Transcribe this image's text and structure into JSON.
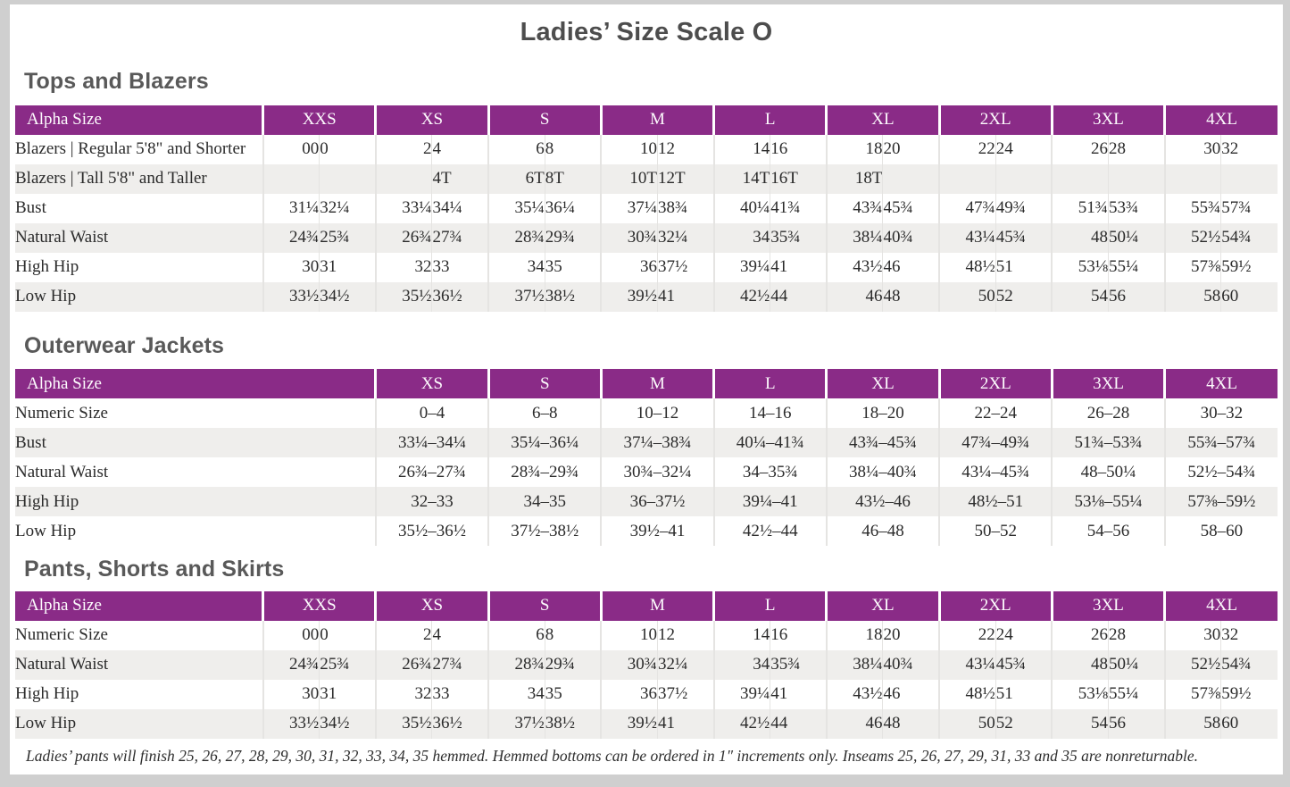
{
  "page": {
    "title": "Ladies’ Size Scale O",
    "footnote": "Ladies’ pants will finish 25, 26, 27, 28, 29, 30, 31, 32, 33, 34, 35 hemmed. Hemmed bottoms can be ordered in 1″ increments only. Inseams 25, 26, 27, 29, 31, 33 and 35 are nonreturnable."
  },
  "colors": {
    "header_purple": "#8a2b87",
    "row_stripe": "#efeeec",
    "heading_gray": "#595959",
    "page_edge_gray": "#cfcfcf"
  },
  "tables": [
    {
      "section_title": "Tops and Blazers",
      "type": "split",
      "header_label": "Alpha Size",
      "sizes": [
        "XXS",
        "XS",
        "S",
        "M",
        "L",
        "XL",
        "2XL",
        "3XL",
        "4XL"
      ],
      "rows": [
        {
          "label": "Blazers  |  Regular 5'8\" and Shorter",
          "cells": [
            [
              "00",
              "0"
            ],
            [
              "2",
              "4"
            ],
            [
              "6",
              "8"
            ],
            [
              "10",
              "12"
            ],
            [
              "14",
              "16"
            ],
            [
              "18",
              "20"
            ],
            [
              "22",
              "24"
            ],
            [
              "26",
              "28"
            ],
            [
              "30",
              "32"
            ]
          ]
        },
        {
          "label": "Blazers  |  Tall 5'8\" and Taller",
          "cells": [
            [
              "",
              ""
            ],
            [
              "",
              "4T"
            ],
            [
              "6T",
              "8T"
            ],
            [
              "10T",
              "12T"
            ],
            [
              "14T",
              "16T"
            ],
            [
              "18T",
              ""
            ],
            [
              "",
              ""
            ],
            [
              "",
              ""
            ],
            [
              "",
              ""
            ]
          ]
        },
        {
          "label": "Bust",
          "cells": [
            [
              "31¼",
              "32¼"
            ],
            [
              "33¼",
              "34¼"
            ],
            [
              "35¼",
              "36¼"
            ],
            [
              "37¼",
              "38¾"
            ],
            [
              "40¼",
              "41¾"
            ],
            [
              "43¾",
              "45¾"
            ],
            [
              "47¾",
              "49¾"
            ],
            [
              "51¾",
              "53¾"
            ],
            [
              "55¾",
              "57¾"
            ]
          ]
        },
        {
          "label": "Natural Waist",
          "cells": [
            [
              "24¾",
              "25¾"
            ],
            [
              "26¾",
              "27¾"
            ],
            [
              "28¾",
              "29¾"
            ],
            [
              "30¾",
              "32¼"
            ],
            [
              "34",
              "35¾"
            ],
            [
              "38¼",
              "40¾"
            ],
            [
              "43¼",
              "45¾"
            ],
            [
              "48",
              "50¼"
            ],
            [
              "52½",
              "54¾"
            ]
          ]
        },
        {
          "label": "High Hip",
          "cells": [
            [
              "30",
              "31"
            ],
            [
              "32",
              "33"
            ],
            [
              "34",
              "35"
            ],
            [
              "36",
              "37½"
            ],
            [
              "39¼",
              "41"
            ],
            [
              "43½",
              "46"
            ],
            [
              "48½",
              "51"
            ],
            [
              "53⅛",
              "55¼"
            ],
            [
              "57⅜",
              "59½"
            ]
          ]
        },
        {
          "label": "Low Hip",
          "cells": [
            [
              "33½",
              "34½"
            ],
            [
              "35½",
              "36½"
            ],
            [
              "37½",
              "38½"
            ],
            [
              "39½",
              "41"
            ],
            [
              "42½",
              "44"
            ],
            [
              "46",
              "48"
            ],
            [
              "50",
              "52"
            ],
            [
              "54",
              "56"
            ],
            [
              "58",
              "60"
            ]
          ]
        }
      ]
    },
    {
      "section_title": "Outerwear Jackets",
      "type": "range",
      "header_label": "Alpha Size",
      "sizes": [
        "XS",
        "S",
        "M",
        "L",
        "XL",
        "2XL",
        "3XL",
        "4XL"
      ],
      "rows": [
        {
          "label": "Numeric Size",
          "cells": [
            "0–4",
            "6–8",
            "10–12",
            "14–16",
            "18–20",
            "22–24",
            "26–28",
            "30–32"
          ]
        },
        {
          "label": "Bust",
          "cells": [
            "33¼–34¼",
            "35¼–36¼",
            "37¼–38¾",
            "40¼–41¾",
            "43¾–45¾",
            "47¾–49¾",
            "51¾–53¾",
            "55¾–57¾"
          ]
        },
        {
          "label": "Natural Waist",
          "cells": [
            "26¾–27¾",
            "28¾–29¾",
            "30¾–32¼",
            "34–35¾",
            "38¼–40¾",
            "43¼–45¾",
            "48–50¼",
            "52½–54¾"
          ]
        },
        {
          "label": "High Hip",
          "cells": [
            "32–33",
            "34–35",
            "36–37½",
            "39¼–41",
            "43½–46",
            "48½–51",
            "53⅛–55¼",
            "57⅜–59½"
          ]
        },
        {
          "label": "Low Hip",
          "cells": [
            "35½–36½",
            "37½–38½",
            "39½–41",
            "42½–44",
            "46–48",
            "50–52",
            "54–56",
            "58–60"
          ]
        }
      ]
    },
    {
      "section_title": "Pants, Shorts and Skirts",
      "type": "split",
      "header_label": "Alpha Size",
      "sizes": [
        "XXS",
        "XS",
        "S",
        "M",
        "L",
        "XL",
        "2XL",
        "3XL",
        "4XL"
      ],
      "rows": [
        {
          "label": "Numeric Size",
          "cells": [
            [
              "00",
              "0"
            ],
            [
              "2",
              "4"
            ],
            [
              "6",
              "8"
            ],
            [
              "10",
              "12"
            ],
            [
              "14",
              "16"
            ],
            [
              "18",
              "20"
            ],
            [
              "22",
              "24"
            ],
            [
              "26",
              "28"
            ],
            [
              "30",
              "32"
            ]
          ]
        },
        {
          "label": "Natural Waist",
          "cells": [
            [
              "24¾",
              "25¾"
            ],
            [
              "26¾",
              "27¾"
            ],
            [
              "28¾",
              "29¾"
            ],
            [
              "30¾",
              "32¼"
            ],
            [
              "34",
              "35¾"
            ],
            [
              "38¼",
              "40¾"
            ],
            [
              "43¼",
              "45¾"
            ],
            [
              "48",
              "50¼"
            ],
            [
              "52½",
              "54¾"
            ]
          ]
        },
        {
          "label": "High Hip",
          "cells": [
            [
              "30",
              "31"
            ],
            [
              "32",
              "33"
            ],
            [
              "34",
              "35"
            ],
            [
              "36",
              "37½"
            ],
            [
              "39¼",
              "41"
            ],
            [
              "43½",
              "46"
            ],
            [
              "48½",
              "51"
            ],
            [
              "53⅛",
              "55¼"
            ],
            [
              "57⅜",
              "59½"
            ]
          ]
        },
        {
          "label": "Low Hip",
          "cells": [
            [
              "33½",
              "34½"
            ],
            [
              "35½",
              "36½"
            ],
            [
              "37½",
              "38½"
            ],
            [
              "39½",
              "41"
            ],
            [
              "42½",
              "44"
            ],
            [
              "46",
              "48"
            ],
            [
              "50",
              "52"
            ],
            [
              "54",
              "56"
            ],
            [
              "58",
              "60"
            ]
          ]
        }
      ]
    }
  ]
}
